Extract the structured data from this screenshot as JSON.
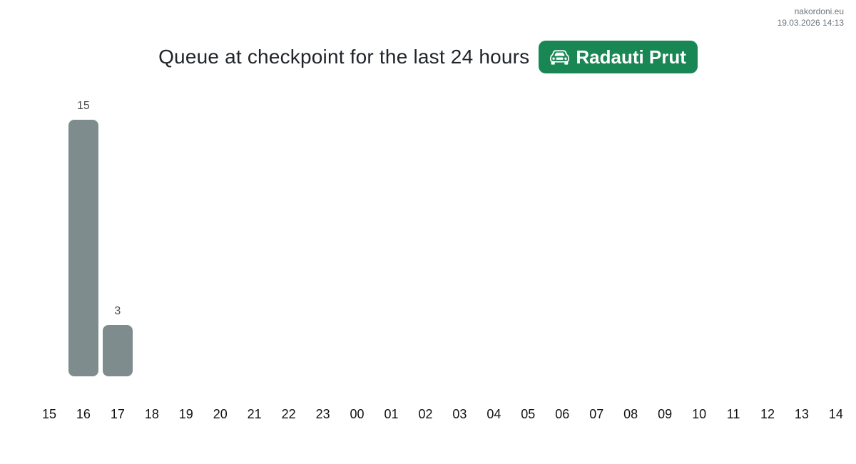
{
  "watermark": {
    "site": "nakordoni.eu",
    "timestamp": "19.03.2026 14:13"
  },
  "header": {
    "title": "Queue at checkpoint for the last 24 hours",
    "badge": {
      "label": "Radauti Prut",
      "icon": "car-front-icon",
      "bg_color": "#198754",
      "text_color": "#ffffff"
    }
  },
  "chart_data": {
    "type": "bar",
    "title": "Queue at checkpoint for the last 24 hours",
    "categories": [
      "15",
      "16",
      "17",
      "18",
      "19",
      "20",
      "21",
      "22",
      "23",
      "00",
      "01",
      "02",
      "03",
      "04",
      "05",
      "06",
      "07",
      "08",
      "09",
      "10",
      "11",
      "12",
      "13",
      "14"
    ],
    "values": [
      0,
      15,
      3,
      0,
      0,
      0,
      0,
      0,
      0,
      0,
      0,
      0,
      0,
      0,
      0,
      0,
      0,
      0,
      0,
      0,
      0,
      0,
      0,
      0
    ],
    "xlabel": "",
    "ylabel": "",
    "ylim": [
      0,
      15
    ],
    "grid": false,
    "legend": "none",
    "bar_color": "#7f8c8d",
    "value_label_color": "#4d4d4d",
    "axis_label_color": "#111111",
    "value_labels": "shown above non-zero bars"
  }
}
